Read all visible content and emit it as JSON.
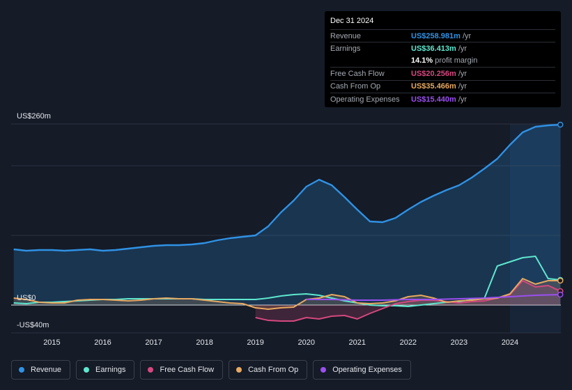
{
  "tooltip": {
    "date": "Dec 31 2024",
    "rows": [
      {
        "label": "Revenue",
        "value": "US$258.981m",
        "unit": "/yr",
        "color": "#2f92e5"
      },
      {
        "label": "Earnings",
        "value": "US$36.413m",
        "unit": "/yr",
        "color": "#5ee8d0"
      },
      {
        "label": "",
        "value": "14.1%",
        "unit": "profit margin",
        "color": "#ffffff"
      },
      {
        "label": "Free Cash Flow",
        "value": "US$20.256m",
        "unit": "/yr",
        "color": "#d6487f"
      },
      {
        "label": "Cash From Op",
        "value": "US$35.466m",
        "unit": "/yr",
        "color": "#e8a961"
      },
      {
        "label": "Operating Expenses",
        "value": "US$15.440m",
        "unit": "/yr",
        "color": "#9b4ff0"
      }
    ]
  },
  "legend": [
    {
      "label": "Revenue",
      "color": "#2f92e5"
    },
    {
      "label": "Earnings",
      "color": "#5ee8d0"
    },
    {
      "label": "Free Cash Flow",
      "color": "#d6487f"
    },
    {
      "label": "Cash From Op",
      "color": "#e8a961"
    },
    {
      "label": "Operating Expenses",
      "color": "#9b4ff0"
    }
  ],
  "chart_data": {
    "type": "line",
    "title": "",
    "xlabel": "",
    "ylabel": "",
    "ylim": [
      -40,
      260
    ],
    "xlim": [
      2014.2,
      2025.0
    ],
    "y_ticks": [
      {
        "value": 260,
        "label": "US$260m"
      },
      {
        "value": 0,
        "label": "US$0"
      },
      {
        "value": -40,
        "label": "-US$40m"
      }
    ],
    "x_ticks": [
      2015,
      2016,
      2017,
      2018,
      2019,
      2020,
      2021,
      2022,
      2023,
      2024
    ],
    "highlight_from": 2024.0,
    "series": [
      {
        "name": "Revenue",
        "color": "#2f92e5",
        "filled": true,
        "points": [
          [
            2014.25,
            80
          ],
          [
            2014.5,
            78
          ],
          [
            2014.75,
            79
          ],
          [
            2015.0,
            79
          ],
          [
            2015.25,
            78
          ],
          [
            2015.5,
            79
          ],
          [
            2015.75,
            80
          ],
          [
            2016.0,
            78
          ],
          [
            2016.25,
            79
          ],
          [
            2016.5,
            81
          ],
          [
            2016.75,
            83
          ],
          [
            2017.0,
            85
          ],
          [
            2017.25,
            86
          ],
          [
            2017.5,
            86
          ],
          [
            2017.75,
            87
          ],
          [
            2018.0,
            89
          ],
          [
            2018.25,
            93
          ],
          [
            2018.5,
            96
          ],
          [
            2018.75,
            98
          ],
          [
            2019.0,
            100
          ],
          [
            2019.25,
            113
          ],
          [
            2019.5,
            133
          ],
          [
            2019.75,
            150
          ],
          [
            2020.0,
            170
          ],
          [
            2020.25,
            180
          ],
          [
            2020.5,
            172
          ],
          [
            2020.75,
            155
          ],
          [
            2021.0,
            137
          ],
          [
            2021.25,
            120
          ],
          [
            2021.5,
            119
          ],
          [
            2021.75,
            125
          ],
          [
            2022.0,
            137
          ],
          [
            2022.25,
            148
          ],
          [
            2022.5,
            157
          ],
          [
            2022.75,
            165
          ],
          [
            2023.0,
            172
          ],
          [
            2023.25,
            183
          ],
          [
            2023.5,
            196
          ],
          [
            2023.75,
            210
          ],
          [
            2024.0,
            230
          ],
          [
            2024.25,
            248
          ],
          [
            2024.5,
            256
          ],
          [
            2024.75,
            258
          ],
          [
            2024.99,
            259
          ]
        ]
      },
      {
        "name": "Earnings",
        "color": "#5ee8d0",
        "filled": false,
        "points": [
          [
            2014.25,
            3
          ],
          [
            2014.5,
            2
          ],
          [
            2014.75,
            4
          ],
          [
            2015.0,
            4
          ],
          [
            2015.25,
            5
          ],
          [
            2015.5,
            6
          ],
          [
            2015.75,
            7
          ],
          [
            2016.0,
            8
          ],
          [
            2016.25,
            8
          ],
          [
            2016.5,
            9
          ],
          [
            2016.75,
            9
          ],
          [
            2017.0,
            9
          ],
          [
            2017.25,
            9
          ],
          [
            2017.5,
            9
          ],
          [
            2017.75,
            9
          ],
          [
            2018.0,
            8
          ],
          [
            2018.25,
            8
          ],
          [
            2018.5,
            8
          ],
          [
            2018.75,
            8
          ],
          [
            2019.0,
            8
          ],
          [
            2019.25,
            10
          ],
          [
            2019.5,
            13
          ],
          [
            2019.75,
            15
          ],
          [
            2020.0,
            16
          ],
          [
            2020.25,
            14
          ],
          [
            2020.5,
            10
          ],
          [
            2020.75,
            6
          ],
          [
            2021.0,
            3
          ],
          [
            2021.25,
            0
          ],
          [
            2021.5,
            -1
          ],
          [
            2021.75,
            -1
          ],
          [
            2022.0,
            -2
          ],
          [
            2022.25,
            0
          ],
          [
            2022.5,
            2
          ],
          [
            2022.75,
            4
          ],
          [
            2023.0,
            5
          ],
          [
            2023.25,
            8
          ],
          [
            2023.5,
            10
          ],
          [
            2023.75,
            56
          ],
          [
            2024.0,
            62
          ],
          [
            2024.25,
            68
          ],
          [
            2024.5,
            70
          ],
          [
            2024.75,
            38
          ],
          [
            2024.99,
            36
          ]
        ]
      },
      {
        "name": "Free Cash Flow",
        "color": "#d6487f",
        "filled": true,
        "points": [
          [
            2019.0,
            -18
          ],
          [
            2019.25,
            -22
          ],
          [
            2019.5,
            -23
          ],
          [
            2019.75,
            -23
          ],
          [
            2020.0,
            -18
          ],
          [
            2020.25,
            -20
          ],
          [
            2020.5,
            -16
          ],
          [
            2020.75,
            -15
          ],
          [
            2021.0,
            -20
          ],
          [
            2021.25,
            -12
          ],
          [
            2021.5,
            -5
          ],
          [
            2021.75,
            2
          ],
          [
            2022.0,
            5
          ],
          [
            2022.25,
            7
          ],
          [
            2022.5,
            7
          ],
          [
            2022.75,
            5
          ],
          [
            2023.0,
            3
          ],
          [
            2023.25,
            5
          ],
          [
            2023.5,
            6
          ],
          [
            2023.75,
            10
          ],
          [
            2024.0,
            15
          ],
          [
            2024.25,
            35
          ],
          [
            2024.5,
            26
          ],
          [
            2024.75,
            28
          ],
          [
            2024.99,
            20
          ]
        ]
      },
      {
        "name": "Cash From Op",
        "color": "#e8a961",
        "filled": true,
        "points": [
          [
            2014.25,
            10
          ],
          [
            2014.5,
            8
          ],
          [
            2014.75,
            4
          ],
          [
            2015.0,
            3
          ],
          [
            2015.25,
            3
          ],
          [
            2015.5,
            7
          ],
          [
            2015.75,
            8
          ],
          [
            2016.0,
            8
          ],
          [
            2016.25,
            7
          ],
          [
            2016.5,
            6
          ],
          [
            2016.75,
            7
          ],
          [
            2017.0,
            9
          ],
          [
            2017.25,
            10
          ],
          [
            2017.5,
            9
          ],
          [
            2017.75,
            9
          ],
          [
            2018.0,
            7
          ],
          [
            2018.25,
            5
          ],
          [
            2018.5,
            3
          ],
          [
            2018.75,
            2
          ],
          [
            2019.0,
            -4
          ],
          [
            2019.25,
            -6
          ],
          [
            2019.5,
            -4
          ],
          [
            2019.75,
            -3
          ],
          [
            2020.0,
            8
          ],
          [
            2020.25,
            10
          ],
          [
            2020.5,
            15
          ],
          [
            2020.75,
            12
          ],
          [
            2021.0,
            3
          ],
          [
            2021.25,
            2
          ],
          [
            2021.5,
            3
          ],
          [
            2021.75,
            6
          ],
          [
            2022.0,
            12
          ],
          [
            2022.25,
            14
          ],
          [
            2022.5,
            10
          ],
          [
            2022.75,
            4
          ],
          [
            2023.0,
            6
          ],
          [
            2023.25,
            7
          ],
          [
            2023.5,
            9
          ],
          [
            2023.75,
            10
          ],
          [
            2024.0,
            16
          ],
          [
            2024.25,
            38
          ],
          [
            2024.5,
            30
          ],
          [
            2024.75,
            35
          ],
          [
            2024.99,
            35
          ]
        ]
      },
      {
        "name": "Operating Expenses",
        "color": "#9b4ff0",
        "filled": false,
        "points": [
          [
            2020.0,
            8
          ],
          [
            2020.5,
            8
          ],
          [
            2021.0,
            7
          ],
          [
            2021.5,
            7
          ],
          [
            2022.0,
            8
          ],
          [
            2022.5,
            8
          ],
          [
            2023.0,
            9
          ],
          [
            2023.5,
            10
          ],
          [
            2024.0,
            12
          ],
          [
            2024.5,
            14
          ],
          [
            2024.99,
            15
          ]
        ]
      }
    ]
  }
}
